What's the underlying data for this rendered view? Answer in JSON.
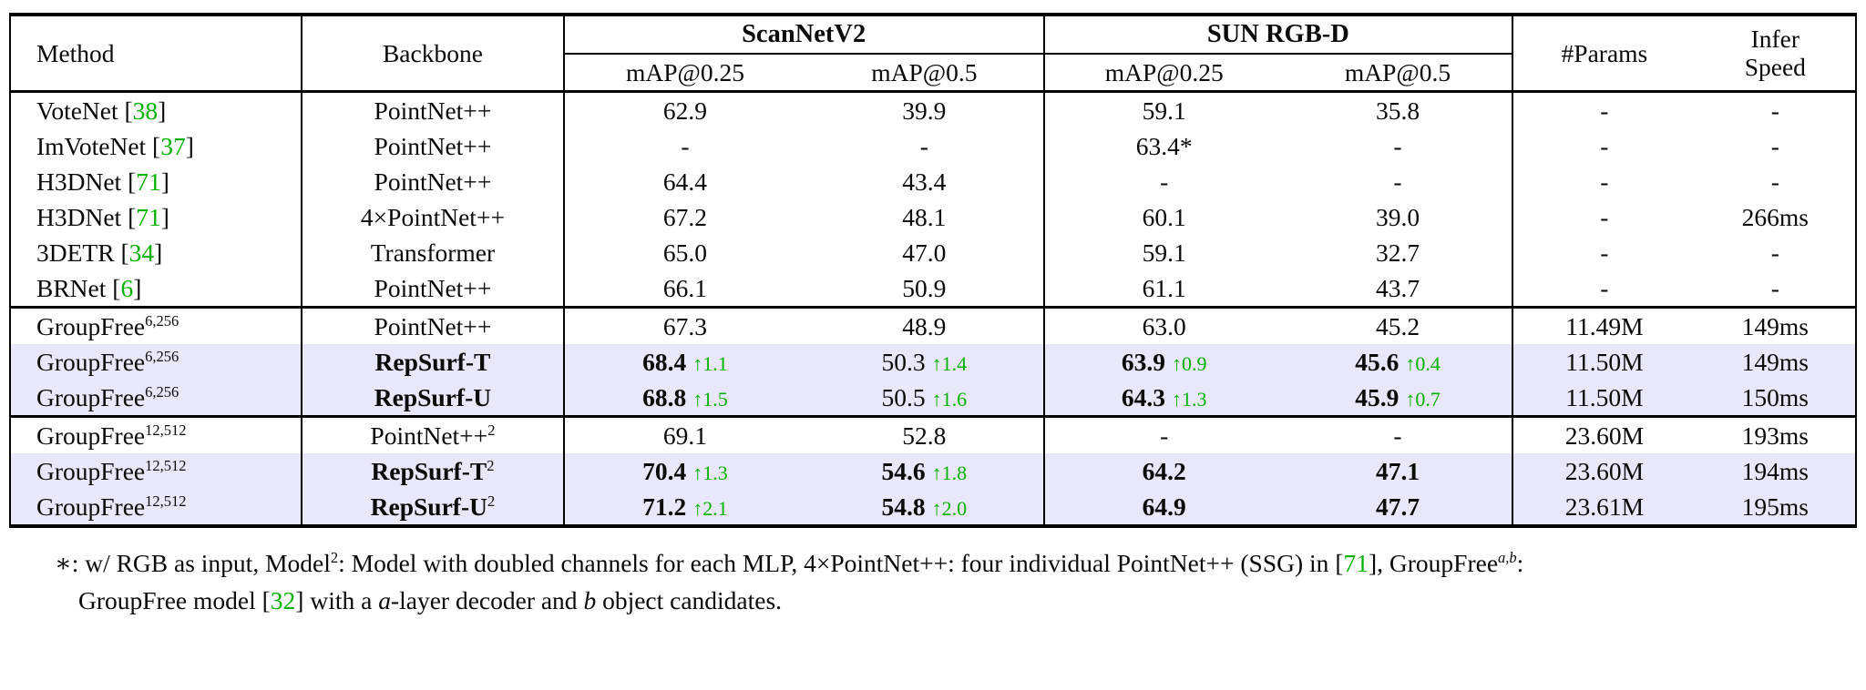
{
  "colors": {
    "green": "#00B200",
    "highlight": "#E8E8FA",
    "border": "#000000"
  },
  "table": {
    "header": {
      "method": "Method",
      "backbone": "Backbone",
      "group_scannet": "ScanNetV2",
      "group_sunrgbd": "SUN RGB-D",
      "subs": [
        "mAP@0.25",
        "mAP@0.5",
        "mAP@0.25",
        "mAP@0.5"
      ],
      "params": "#Params",
      "infer_line1": "Infer",
      "infer_line2": "Speed"
    },
    "rows": [
      {
        "highlight": false,
        "sep": false,
        "method": {
          "name": "VoteNet",
          "sup": "",
          "cite": "38"
        },
        "backbone": {
          "text": "PointNet++",
          "sup": "",
          "bold": false
        },
        "cells": [
          {
            "v": "62.9",
            "bold": false,
            "delta": ""
          },
          {
            "v": "39.9",
            "bold": false,
            "delta": ""
          },
          {
            "v": "59.1",
            "bold": false,
            "delta": ""
          },
          {
            "v": "35.8",
            "bold": false,
            "delta": ""
          }
        ],
        "params": "-",
        "speed": "-"
      },
      {
        "highlight": false,
        "sep": false,
        "method": {
          "name": "ImVoteNet",
          "sup": "",
          "cite": "37"
        },
        "backbone": {
          "text": "PointNet++",
          "sup": "",
          "bold": false
        },
        "cells": [
          {
            "v": "-",
            "bold": false,
            "delta": ""
          },
          {
            "v": "-",
            "bold": false,
            "delta": ""
          },
          {
            "v": "63.4*",
            "bold": false,
            "delta": ""
          },
          {
            "v": "-",
            "bold": false,
            "delta": ""
          }
        ],
        "params": "-",
        "speed": "-"
      },
      {
        "highlight": false,
        "sep": false,
        "method": {
          "name": "H3DNet",
          "sup": "",
          "cite": "71"
        },
        "backbone": {
          "text": "PointNet++",
          "sup": "",
          "bold": false
        },
        "cells": [
          {
            "v": "64.4",
            "bold": false,
            "delta": ""
          },
          {
            "v": "43.4",
            "bold": false,
            "delta": ""
          },
          {
            "v": "-",
            "bold": false,
            "delta": ""
          },
          {
            "v": "-",
            "bold": false,
            "delta": ""
          }
        ],
        "params": "-",
        "speed": "-"
      },
      {
        "highlight": false,
        "sep": false,
        "method": {
          "name": "H3DNet",
          "sup": "",
          "cite": "71"
        },
        "backbone": {
          "text": "4×PointNet++",
          "sup": "",
          "bold": false
        },
        "cells": [
          {
            "v": "67.2",
            "bold": false,
            "delta": ""
          },
          {
            "v": "48.1",
            "bold": false,
            "delta": ""
          },
          {
            "v": "60.1",
            "bold": false,
            "delta": ""
          },
          {
            "v": "39.0",
            "bold": false,
            "delta": ""
          }
        ],
        "params": "-",
        "speed": "266ms"
      },
      {
        "highlight": false,
        "sep": false,
        "method": {
          "name": "3DETR",
          "sup": "",
          "cite": "34"
        },
        "backbone": {
          "text": "Transformer",
          "sup": "",
          "bold": false
        },
        "cells": [
          {
            "v": "65.0",
            "bold": false,
            "delta": ""
          },
          {
            "v": "47.0",
            "bold": false,
            "delta": ""
          },
          {
            "v": "59.1",
            "bold": false,
            "delta": ""
          },
          {
            "v": "32.7",
            "bold": false,
            "delta": ""
          }
        ],
        "params": "-",
        "speed": "-"
      },
      {
        "highlight": false,
        "sep": false,
        "method": {
          "name": "BRNet",
          "sup": "",
          "cite": "6"
        },
        "backbone": {
          "text": "PointNet++",
          "sup": "",
          "bold": false
        },
        "cells": [
          {
            "v": "66.1",
            "bold": false,
            "delta": ""
          },
          {
            "v": "50.9",
            "bold": false,
            "delta": ""
          },
          {
            "v": "61.1",
            "bold": false,
            "delta": ""
          },
          {
            "v": "43.7",
            "bold": false,
            "delta": ""
          }
        ],
        "params": "-",
        "speed": "-"
      },
      {
        "highlight": false,
        "sep": true,
        "method": {
          "name": "GroupFree",
          "sup": "6,256",
          "cite": ""
        },
        "backbone": {
          "text": "PointNet++",
          "sup": "",
          "bold": false
        },
        "cells": [
          {
            "v": "67.3",
            "bold": false,
            "delta": ""
          },
          {
            "v": "48.9",
            "bold": false,
            "delta": ""
          },
          {
            "v": "63.0",
            "bold": false,
            "delta": ""
          },
          {
            "v": "45.2",
            "bold": false,
            "delta": ""
          }
        ],
        "params": "11.49M",
        "speed": "149ms"
      },
      {
        "highlight": true,
        "sep": false,
        "method": {
          "name": "GroupFree",
          "sup": "6,256",
          "cite": ""
        },
        "backbone": {
          "text": "RepSurf-T",
          "sup": "",
          "bold": true
        },
        "cells": [
          {
            "v": "68.4",
            "bold": true,
            "delta": "↑1.1"
          },
          {
            "v": "50.3",
            "bold": false,
            "delta": "↑1.4"
          },
          {
            "v": "63.9",
            "bold": true,
            "delta": "↑0.9"
          },
          {
            "v": "45.6",
            "bold": true,
            "delta": "↑0.4"
          }
        ],
        "params": "11.50M",
        "speed": "149ms"
      },
      {
        "highlight": true,
        "sep": false,
        "method": {
          "name": "GroupFree",
          "sup": "6,256",
          "cite": ""
        },
        "backbone": {
          "text": "RepSurf-U",
          "sup": "",
          "bold": true
        },
        "cells": [
          {
            "v": "68.8",
            "bold": true,
            "delta": "↑1.5"
          },
          {
            "v": "50.5",
            "bold": false,
            "delta": "↑1.6"
          },
          {
            "v": "64.3",
            "bold": true,
            "delta": "↑1.3"
          },
          {
            "v": "45.9",
            "bold": true,
            "delta": "↑0.7"
          }
        ],
        "params": "11.50M",
        "speed": "150ms"
      },
      {
        "highlight": false,
        "sep": true,
        "method": {
          "name": "GroupFree",
          "sup": "12,512",
          "cite": ""
        },
        "backbone": {
          "text": "PointNet++",
          "sup": "2",
          "bold": false
        },
        "cells": [
          {
            "v": "69.1",
            "bold": false,
            "delta": ""
          },
          {
            "v": "52.8",
            "bold": false,
            "delta": ""
          },
          {
            "v": "-",
            "bold": false,
            "delta": ""
          },
          {
            "v": "-",
            "bold": false,
            "delta": ""
          }
        ],
        "params": "23.60M",
        "speed": "193ms"
      },
      {
        "highlight": true,
        "sep": false,
        "method": {
          "name": "GroupFree",
          "sup": "12,512",
          "cite": ""
        },
        "backbone": {
          "text": "RepSurf-T",
          "sup": "2",
          "bold": true
        },
        "cells": [
          {
            "v": "70.4",
            "bold": true,
            "delta": "↑1.3"
          },
          {
            "v": "54.6",
            "bold": true,
            "delta": "↑1.8"
          },
          {
            "v": "64.2",
            "bold": true,
            "delta": ""
          },
          {
            "v": "47.1",
            "bold": true,
            "delta": ""
          }
        ],
        "params": "23.60M",
        "speed": "194ms"
      },
      {
        "highlight": true,
        "sep": false,
        "method": {
          "name": "GroupFree",
          "sup": "12,512",
          "cite": ""
        },
        "backbone": {
          "text": "RepSurf-U",
          "sup": "2",
          "bold": true
        },
        "cells": [
          {
            "v": "71.2",
            "bold": true,
            "delta": "↑2.1"
          },
          {
            "v": "54.8",
            "bold": true,
            "delta": "↑2.0"
          },
          {
            "v": "64.9",
            "bold": true,
            "delta": ""
          },
          {
            "v": "47.7",
            "bold": true,
            "delta": ""
          }
        ],
        "params": "23.61M",
        "speed": "195ms"
      }
    ]
  },
  "footnote": {
    "segments": [
      {
        "t": "∗: w/ RGB as input, Model"
      },
      {
        "t": "2",
        "sup": true
      },
      {
        "t": ": Model with doubled channels for each MLP, 4×PointNet++: four individual PointNet++ (SSG) in "
      },
      {
        "t": "["
      },
      {
        "t": "71",
        "green": true
      },
      {
        "t": "]"
      },
      {
        "t": ", GroupFree"
      },
      {
        "t": "a,b",
        "sup": true,
        "italic": true
      },
      {
        "t": ":"
      },
      {
        "br": true
      },
      {
        "t": "GroupFree model "
      },
      {
        "t": "["
      },
      {
        "t": "32",
        "green": true
      },
      {
        "t": "]"
      },
      {
        "t": " with a "
      },
      {
        "t": "a",
        "italic": true
      },
      {
        "t": "-layer decoder and "
      },
      {
        "t": "b",
        "italic": true
      },
      {
        "t": " object candidates."
      }
    ]
  }
}
